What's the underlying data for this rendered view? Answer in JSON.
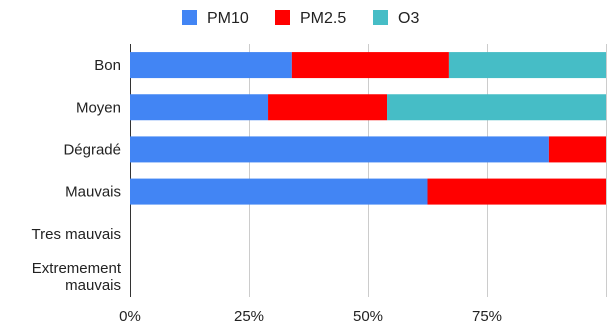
{
  "chart_data": {
    "type": "bar",
    "orientation": "horizontal",
    "stacked": "percent",
    "categories": [
      "Bon",
      "Moyen",
      "Dégradé",
      "Mauvais",
      "Tres mauvais",
      "Extremement mauvais"
    ],
    "series": [
      {
        "name": "PM10",
        "color": "#4285f4",
        "values": [
          34,
          29,
          88,
          62.5,
          0,
          0
        ]
      },
      {
        "name": "PM2.5",
        "color": "#ff0000",
        "values": [
          33,
          25,
          12,
          37.5,
          0,
          0
        ]
      },
      {
        "name": "O3",
        "color": "#46bdc6",
        "values": [
          33,
          46,
          0,
          0,
          0,
          0
        ]
      }
    ],
    "x_ticks": [
      "0%",
      "25%",
      "50%",
      "75%"
    ],
    "xlim": [
      0,
      100
    ],
    "grid": true,
    "legend_position": "top"
  }
}
